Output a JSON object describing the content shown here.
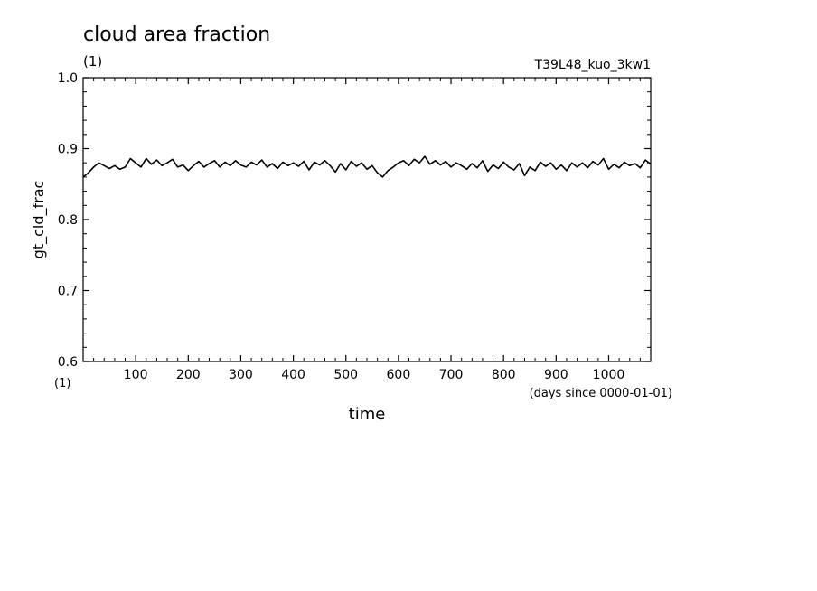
{
  "chart_data": {
    "type": "line",
    "title": "cloud area fraction",
    "title_units": "(1)",
    "experiment": "T39L48_kuo_3kw1",
    "ylabel": "gt_cld_frac",
    "y_units": "(1)",
    "xlabel": "time",
    "x_units": "(days since 0000-01-01)",
    "xlim": [
      0,
      1080
    ],
    "ylim": [
      0.6,
      1.0
    ],
    "x_ticks": [
      100,
      200,
      300,
      400,
      500,
      600,
      700,
      800,
      900,
      1000
    ],
    "y_ticks": [
      0.6,
      0.7,
      0.8,
      0.9,
      1.0
    ],
    "y_tick_labels": [
      "0.6",
      "0.7",
      "0.8",
      "0.9",
      "1.0"
    ],
    "grid": false,
    "line_color": "#000000",
    "series": [
      {
        "x": [
          0,
          10,
          20,
          30,
          40,
          50,
          60,
          70,
          80,
          90,
          100,
          110,
          120,
          130,
          140,
          150,
          160,
          170,
          180,
          190,
          200,
          210,
          220,
          230,
          240,
          250,
          260,
          270,
          280,
          290,
          300,
          310,
          320,
          330,
          340,
          350,
          360,
          370,
          380,
          390,
          400,
          410,
          420,
          430,
          440,
          450,
          460,
          470,
          480,
          490,
          500,
          510,
          520,
          530,
          540,
          550,
          560,
          570,
          580,
          590,
          600,
          610,
          620,
          630,
          640,
          650,
          660,
          670,
          680,
          690,
          700,
          710,
          720,
          730,
          740,
          750,
          760,
          770,
          780,
          790,
          800,
          810,
          820,
          830,
          840,
          850,
          860,
          870,
          880,
          890,
          900,
          910,
          920,
          930,
          940,
          950,
          960,
          970,
          980,
          990,
          1000,
          1010,
          1020,
          1030,
          1040,
          1050,
          1060,
          1070,
          1080
        ],
        "y": [
          0.86,
          0.866,
          0.874,
          0.88,
          0.876,
          0.872,
          0.876,
          0.871,
          0.874,
          0.886,
          0.88,
          0.874,
          0.886,
          0.878,
          0.884,
          0.876,
          0.88,
          0.885,
          0.874,
          0.877,
          0.869,
          0.876,
          0.882,
          0.874,
          0.879,
          0.883,
          0.874,
          0.881,
          0.876,
          0.883,
          0.877,
          0.874,
          0.881,
          0.877,
          0.884,
          0.874,
          0.879,
          0.872,
          0.881,
          0.876,
          0.88,
          0.875,
          0.882,
          0.87,
          0.881,
          0.877,
          0.883,
          0.876,
          0.867,
          0.879,
          0.87,
          0.882,
          0.875,
          0.88,
          0.871,
          0.876,
          0.866,
          0.86,
          0.869,
          0.874,
          0.88,
          0.883,
          0.876,
          0.885,
          0.88,
          0.889,
          0.878,
          0.883,
          0.877,
          0.882,
          0.874,
          0.88,
          0.876,
          0.871,
          0.879,
          0.873,
          0.883,
          0.868,
          0.877,
          0.872,
          0.881,
          0.874,
          0.87,
          0.879,
          0.862,
          0.874,
          0.869,
          0.881,
          0.875,
          0.88,
          0.871,
          0.877,
          0.869,
          0.88,
          0.874,
          0.88,
          0.873,
          0.882,
          0.877,
          0.886,
          0.871,
          0.878,
          0.873,
          0.881,
          0.876,
          0.879,
          0.873,
          0.884,
          0.878
        ]
      }
    ]
  }
}
